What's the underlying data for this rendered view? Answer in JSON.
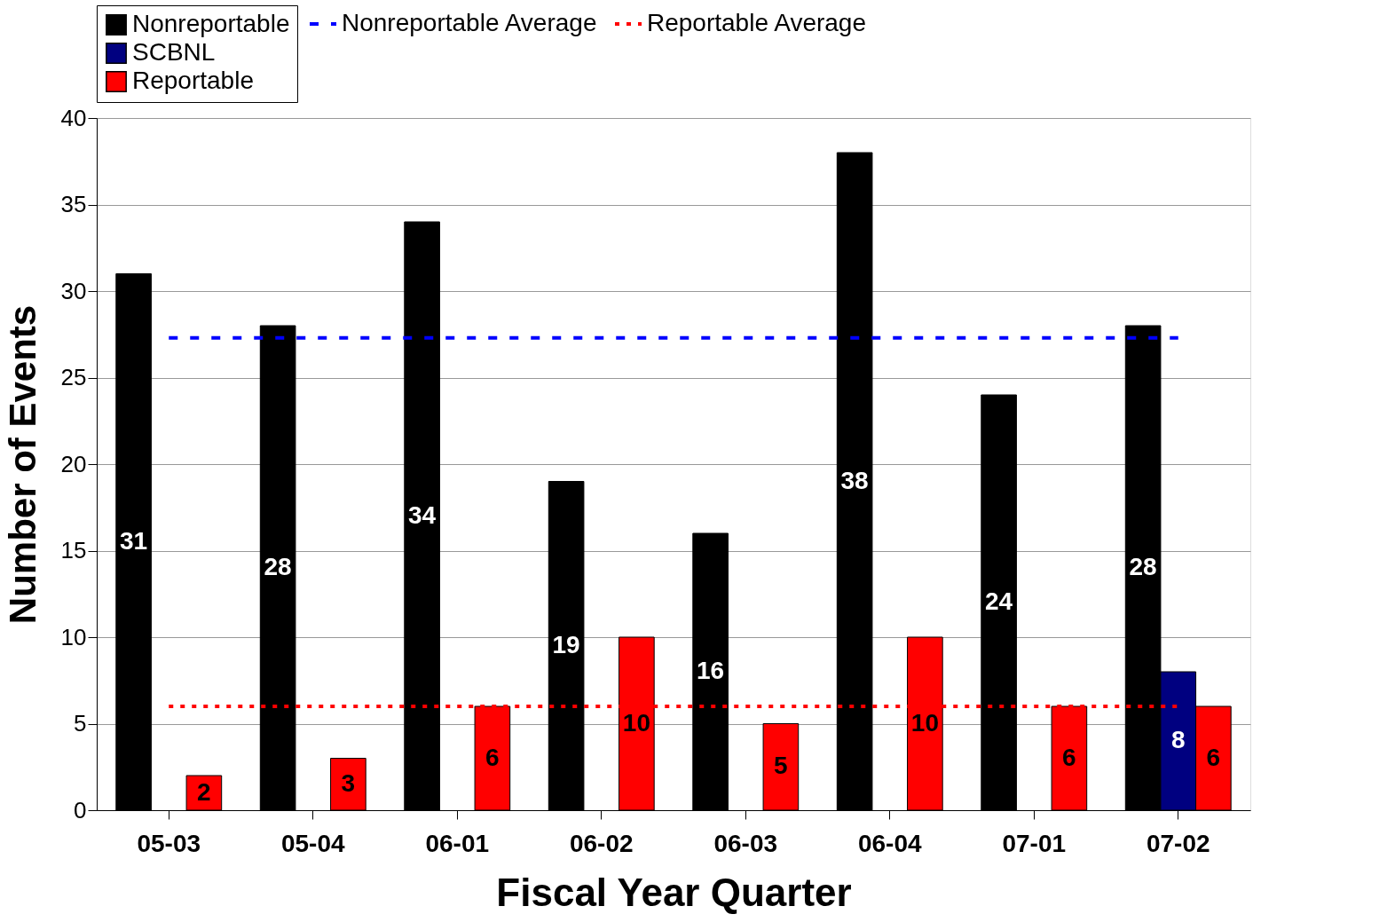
{
  "chart_data": {
    "type": "bar",
    "xlabel": "Fiscal Year Quarter",
    "ylabel": "Number of Events",
    "categories": [
      "05-03",
      "05-04",
      "06-01",
      "06-02",
      "06-03",
      "06-04",
      "07-01",
      "07-02"
    ],
    "series": [
      {
        "name": "Nonreportable",
        "color": "#000000",
        "values": [
          31,
          28,
          34,
          19,
          16,
          38,
          24,
          28
        ]
      },
      {
        "name": "SCBNL",
        "color": "#000080",
        "values": [
          null,
          null,
          null,
          null,
          null,
          null,
          null,
          8
        ]
      },
      {
        "name": "Reportable",
        "color": "#ff0000",
        "values": [
          2,
          3,
          6,
          10,
          5,
          10,
          6,
          6
        ]
      }
    ],
    "ref_lines": [
      {
        "axis": "y",
        "value": 27.3,
        "label": "Nonreportable Average",
        "color": "#0000ff",
        "line_style": "dashed"
      },
      {
        "axis": "y",
        "value": 6,
        "label": "Reportable Average",
        "color": "#ff0000",
        "line_style": "dotted"
      }
    ],
    "ylim": [
      0,
      40
    ],
    "yticks": [
      0,
      5,
      10,
      15,
      20,
      25,
      30,
      35,
      40
    ],
    "grid": "y",
    "legend": "top",
    "data_labels": true
  }
}
